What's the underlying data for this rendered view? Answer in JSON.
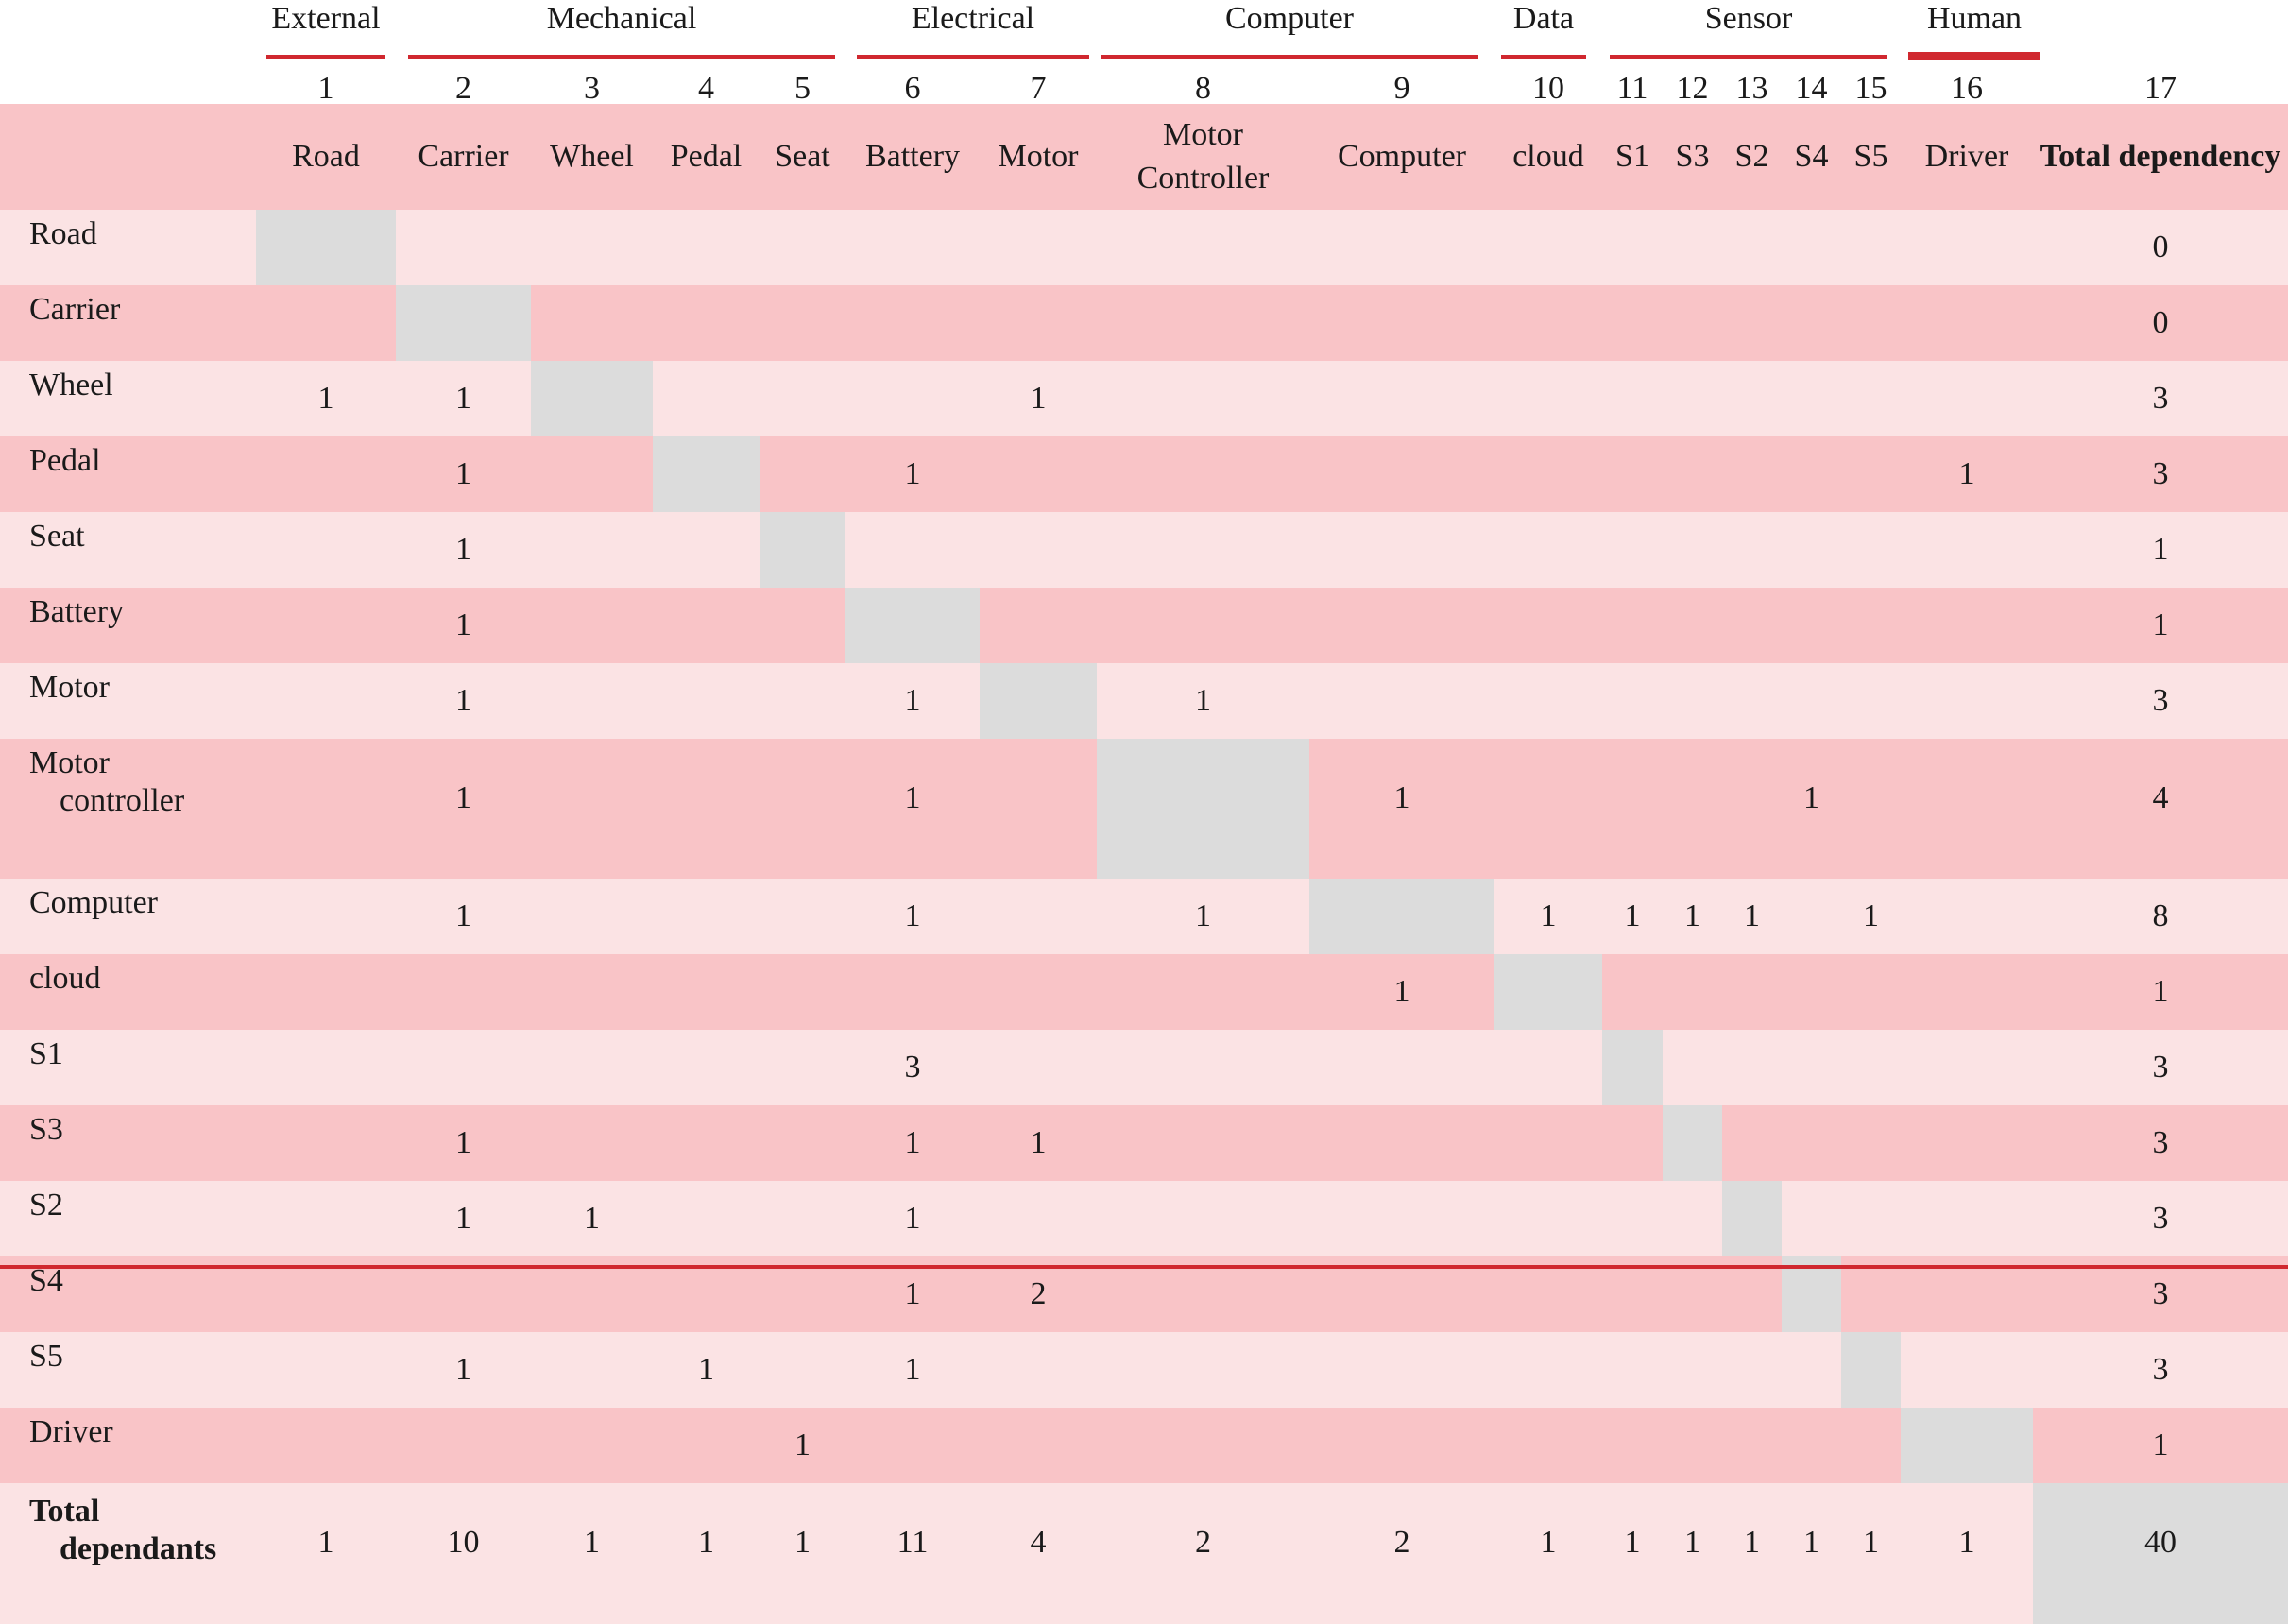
{
  "groups": {
    "external": "External",
    "mechanical": "Mechanical",
    "electrical": "Electrical",
    "computer": "Computer",
    "data": "Data",
    "sensor": "Sensor",
    "human": "Human"
  },
  "col_numbers": [
    "1",
    "2",
    "3",
    "4",
    "5",
    "6",
    "7",
    "8",
    "9",
    "10",
    "11",
    "12",
    "13",
    "14",
    "15",
    "16",
    "17"
  ],
  "col_labels": [
    "Road",
    "Carrier",
    "Wheel",
    "Pedal",
    "Seat",
    "Battery",
    "Motor",
    "Motor Controller",
    "Computer",
    "cloud",
    "S1",
    "S3",
    "S2",
    "S4",
    "S5",
    "Driver",
    "Total dependency"
  ],
  "rows": [
    {
      "label": "Road",
      "cells": [
        "",
        "",
        "",
        "",
        "",
        "",
        "",
        "",
        "",
        "",
        "",
        "",
        "",
        "",
        "",
        ""
      ],
      "total": "0"
    },
    {
      "label": "Carrier",
      "cells": [
        "",
        "",
        "",
        "",
        "",
        "",
        "",
        "",
        "",
        "",
        "",
        "",
        "",
        "",
        "",
        ""
      ],
      "total": "0"
    },
    {
      "label": "Wheel",
      "cells": [
        "1",
        "1",
        "",
        "",
        "",
        "",
        "1",
        "",
        "",
        "",
        "",
        "",
        "",
        "",
        "",
        ""
      ],
      "total": "3"
    },
    {
      "label": "Pedal",
      "cells": [
        "",
        "1",
        "",
        "",
        "",
        "1",
        "",
        "",
        "",
        "",
        "",
        "",
        "",
        "",
        "",
        "1"
      ],
      "total": "3"
    },
    {
      "label": "Seat",
      "cells": [
        "",
        "1",
        "",
        "",
        "",
        "",
        "",
        "",
        "",
        "",
        "",
        "",
        "",
        "",
        "",
        ""
      ],
      "total": "1"
    },
    {
      "label": "Battery",
      "cells": [
        "",
        "1",
        "",
        "",
        "",
        "",
        "",
        "",
        "",
        "",
        "",
        "",
        "",
        "",
        "",
        ""
      ],
      "total": "1"
    },
    {
      "label": "Motor",
      "cells": [
        "",
        "1",
        "",
        "",
        "",
        "1",
        "",
        "1",
        "",
        "",
        "",
        "",
        "",
        "",
        "",
        ""
      ],
      "total": "3"
    },
    {
      "label_line1": "Motor",
      "label_line2": "controller",
      "cells": [
        "",
        "1",
        "",
        "",
        "",
        "1",
        "",
        "",
        "1",
        "",
        "",
        "",
        "",
        "1",
        "",
        ""
      ],
      "total": "4"
    },
    {
      "label": "Computer",
      "cells": [
        "",
        "1",
        "",
        "",
        "",
        "1",
        "",
        "1",
        "",
        "1",
        "1",
        "1",
        "1",
        "",
        "1",
        ""
      ],
      "total": "8"
    },
    {
      "label": "cloud",
      "cells": [
        "",
        "",
        "",
        "",
        "",
        "",
        "",
        "",
        "1",
        "",
        "",
        "",
        "",
        "",
        "",
        ""
      ],
      "total": "1"
    },
    {
      "label": "S1",
      "cells": [
        "",
        "",
        "",
        "",
        "",
        "3",
        "",
        "",
        "",
        "",
        "",
        "",
        "",
        "",
        "",
        ""
      ],
      "total": "3"
    },
    {
      "label": "S3",
      "cells": [
        "",
        "1",
        "",
        "",
        "",
        "1",
        "1",
        "",
        "",
        "",
        "",
        "",
        "",
        "",
        "",
        ""
      ],
      "total": "3"
    },
    {
      "label": "S2",
      "cells": [
        "",
        "1",
        "1",
        "",
        "",
        "1",
        "",
        "",
        "",
        "",
        "",
        "",
        "",
        "",
        "",
        ""
      ],
      "total": "3"
    },
    {
      "label": "S4",
      "cells": [
        "",
        "",
        "",
        "",
        "",
        "1",
        "2",
        "",
        "",
        "",
        "",
        "",
        "",
        "",
        "",
        ""
      ],
      "total": "3"
    },
    {
      "label": "S5",
      "cells": [
        "",
        "1",
        "",
        "1",
        "",
        "1",
        "",
        "",
        "",
        "",
        "",
        "",
        "",
        "",
        "",
        ""
      ],
      "total": "3"
    },
    {
      "label": "Driver",
      "cells": [
        "",
        "",
        "",
        "",
        "1",
        "",
        "",
        "",
        "",
        "",
        "",
        "",
        "",
        "",
        "",
        ""
      ],
      "total": "1"
    }
  ],
  "totals": {
    "label_line1": "Total",
    "label_line2": "dependants",
    "cells": [
      "1",
      "10",
      "1",
      "1",
      "1",
      "11",
      "4",
      "2",
      "2",
      "1",
      "1",
      "1",
      "1",
      "1",
      "1",
      "1"
    ],
    "grand_total": "40"
  },
  "colors": {
    "accent_red": "#d0282f",
    "row_light": "#fbe3e4",
    "row_dark": "#f9c4c7",
    "diagonal": "#dcdcdc"
  }
}
